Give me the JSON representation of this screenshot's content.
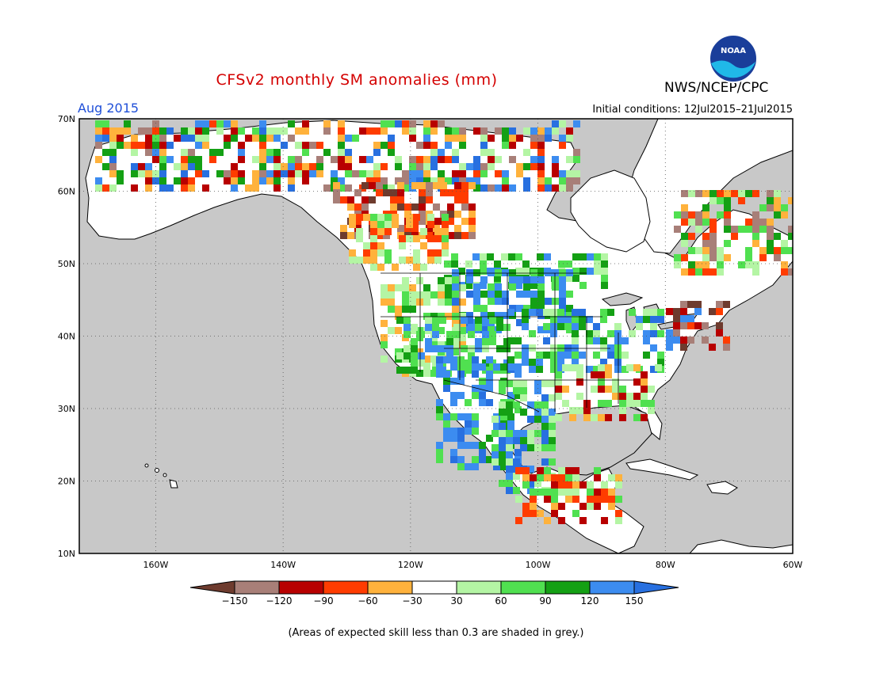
{
  "header": {
    "title": "CFSv2 monthly SM anomalies (mm)",
    "agency": "NWS/NCEP/CPC",
    "logo_text": "NOAA",
    "month": "Aug 2015",
    "initial_conditions": "Initial conditions: 12Jul2015–21Jul2015"
  },
  "map": {
    "lat_labels": [
      "70N",
      "60N",
      "50N",
      "40N",
      "30N",
      "20N",
      "10N"
    ],
    "lon_labels": [
      "160W",
      "140W",
      "120W",
      "100W",
      "80W",
      "60W"
    ],
    "ocean_color": "#c8c8c8",
    "land_color": "#ffffff"
  },
  "legend": {
    "tick_labels": [
      "−150",
      "−120",
      "−90",
      "−60",
      "−30",
      "30",
      "60",
      "90",
      "120",
      "150"
    ],
    "colors": [
      "#6e3b2e",
      "#a87f78",
      "#b80000",
      "#ff3c00",
      "#ffb23c",
      "#ffffff",
      "#b4f5a4",
      "#50e050",
      "#14a014",
      "#3c8cf0",
      "#2870e0"
    ]
  },
  "footnote": "(Areas of expected skill less than 0.3 are shaded in grey.)"
}
